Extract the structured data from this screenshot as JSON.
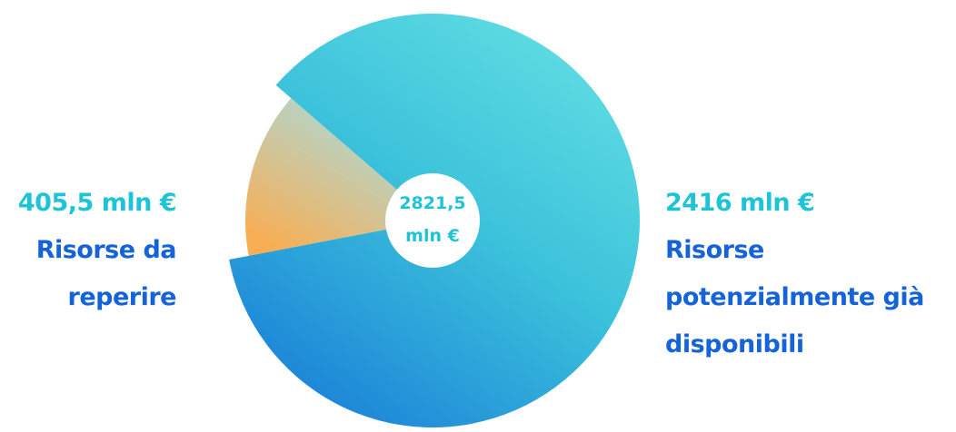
{
  "chart_data": {
    "type": "pie",
    "total": {
      "line1": "2821,5",
      "line2": "mln €"
    },
    "slices": [
      {
        "value": 405.5,
        "value_label": "405,5 mln €",
        "desc_lines": [
          "Risorse da",
          "reperire"
        ],
        "colors": [
          "#f7ae55",
          "#a7dad8"
        ]
      },
      {
        "value": 2416,
        "value_label": "2416 mln €",
        "desc_lines": [
          "Risorse",
          "potenzialmente già",
          "disponibili"
        ],
        "colors": [
          "#1a80d8",
          "#60dde2"
        ]
      }
    ]
  }
}
